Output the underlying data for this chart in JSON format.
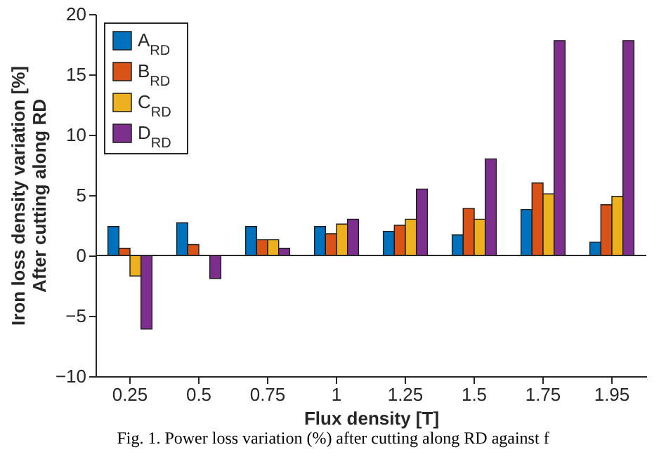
{
  "chart_data": {
    "type": "bar",
    "xlabel": "Flux density [T]",
    "ylabel": "Iron loss density variation [%]\nAfter cutting along RD",
    "categories": [
      "0.25",
      "0.5",
      "0.75",
      "1",
      "1.25",
      "1.5",
      "1.75",
      "1.95"
    ],
    "series": [
      {
        "name": "A$_{RD}$",
        "color": "#0072bd",
        "values": [
          2.4,
          2.7,
          2.4,
          2.4,
          2.0,
          1.7,
          3.8,
          1.1
        ]
      },
      {
        "name": "B$_{RD}$",
        "color": "#d95319",
        "values": [
          0.6,
          0.9,
          1.3,
          1.8,
          2.5,
          3.9,
          6.0,
          4.2
        ]
      },
      {
        "name": "C$_{RD}$",
        "color": "#edb120",
        "values": [
          -1.7,
          null,
          1.3,
          2.6,
          3.0,
          3.0,
          5.1,
          4.9
        ]
      },
      {
        "name": "D$_{RD}$",
        "color": "#7e2f8e",
        "values": [
          -6.1,
          -1.9,
          0.6,
          3.0,
          5.5,
          8.0,
          17.8,
          17.8
        ]
      }
    ],
    "ylim": [
      -10,
      20
    ],
    "yticks": [
      -10,
      -5,
      0,
      5,
      10,
      15,
      20
    ],
    "grid": false,
    "legend": "top left",
    "ref_lines": [
      {
        "axis": "y",
        "value": 0,
        "color": "#262626"
      }
    ],
    "annotations": [
      "Fig. 1. Power loss variation (%) after cutting along RD against f"
    ]
  }
}
